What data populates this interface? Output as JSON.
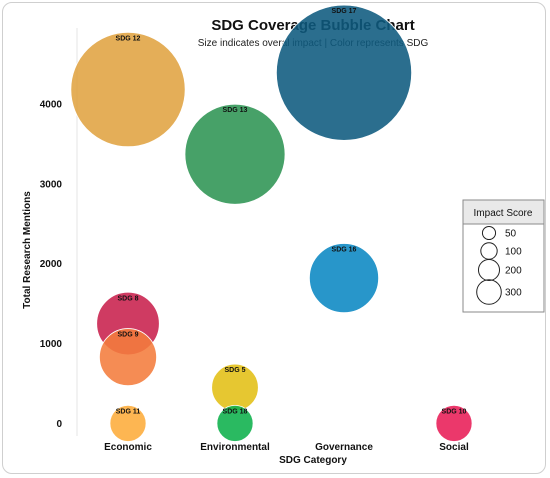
{
  "chart_data": {
    "type": "scatter",
    "title": "SDG Coverage Bubble Chart",
    "subtitle": "Size indicates overal impact | Color represents SDG",
    "xlabel": "SDG Category",
    "ylabel": "Total Research Mentions",
    "categories": [
      "Economic",
      "Environmental",
      "Governance",
      "Social"
    ],
    "ylim": [
      -120,
      4550
    ],
    "yticks": [
      0,
      1000,
      2000,
      3000,
      4000
    ],
    "grid": false,
    "points": [
      {
        "label": "SDG 12",
        "category": "Economic",
        "y": 4180,
        "impact": 300,
        "color": "#e0a341"
      },
      {
        "label": "SDG 8",
        "category": "Economic",
        "y": 1250,
        "impact": 90,
        "color": "#c8204c"
      },
      {
        "label": "SDG 9",
        "category": "Economic",
        "y": 830,
        "impact": 75,
        "color": "#f47c3c"
      },
      {
        "label": "SDG 11",
        "category": "Economic",
        "y": 0,
        "impact": 30,
        "color": "#fdac3a"
      },
      {
        "label": "SDG 13",
        "category": "Environmental",
        "y": 3370,
        "impact": 230,
        "color": "#2e9453"
      },
      {
        "label": "SDG 5",
        "category": "Environmental",
        "y": 450,
        "impact": 50,
        "color": "#e2bf14"
      },
      {
        "label": "SDG 18",
        "category": "Environmental",
        "y": 0,
        "impact": 30,
        "color": "#0db14b"
      },
      {
        "label": "SDG 17",
        "category": "Governance",
        "y": 4390,
        "impact": 420,
        "color": "#0e5a7e"
      },
      {
        "label": "SDG 16",
        "category": "Governance",
        "y": 1820,
        "impact": 110,
        "color": "#0a87c3"
      },
      {
        "label": "SDG 10",
        "category": "Social",
        "y": 0,
        "impact": 30,
        "color": "#e81d56"
      }
    ],
    "legend": {
      "title": "Impact Score",
      "placement": "right",
      "sizes": [
        50,
        100,
        200,
        300
      ]
    }
  }
}
